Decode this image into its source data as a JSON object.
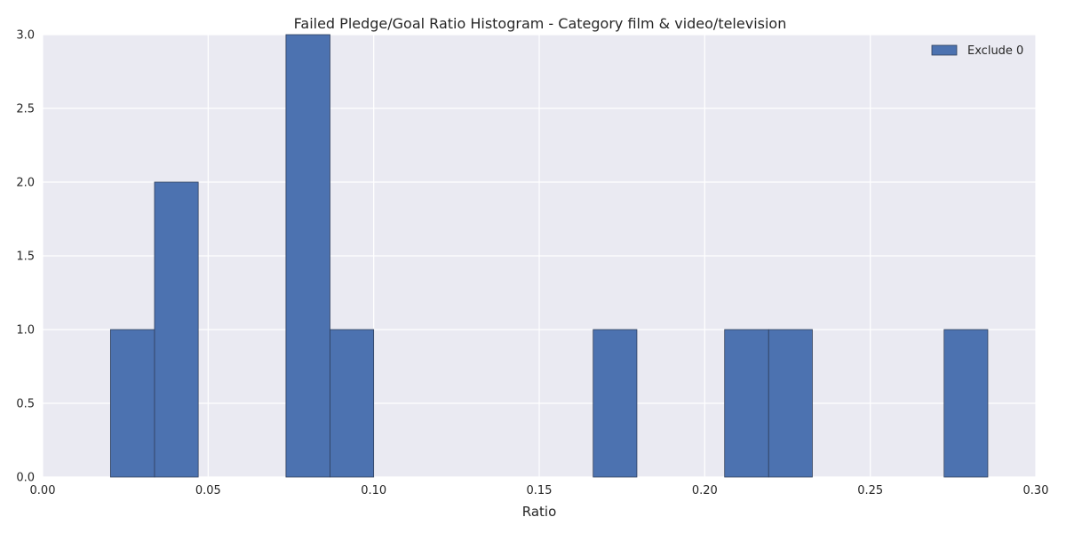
{
  "chart_data": {
    "type": "bar",
    "title": "Failed Pledge/Goal Ratio Histogram - Category film & video/television",
    "xlabel": "Ratio",
    "ylabel": "",
    "xlim": [
      0.0,
      0.3
    ],
    "ylim": [
      0.0,
      3.0
    ],
    "xticks": [
      "0.00",
      "0.05",
      "0.10",
      "0.15",
      "0.20",
      "0.25",
      "0.30"
    ],
    "yticks": [
      "0.0",
      "0.5",
      "1.0",
      "1.5",
      "2.0",
      "2.5",
      "3.0"
    ],
    "grid": true,
    "legend_position": "top-right",
    "series": [
      {
        "name": "Exclude 0",
        "color": "#4c72b0",
        "bins": [
          {
            "start": 0.0205,
            "end": 0.0338,
            "count": 1
          },
          {
            "start": 0.0338,
            "end": 0.047,
            "count": 2
          },
          {
            "start": 0.0735,
            "end": 0.0868,
            "count": 3
          },
          {
            "start": 0.0868,
            "end": 0.1,
            "count": 1
          },
          {
            "start": 0.1663,
            "end": 0.1795,
            "count": 1
          },
          {
            "start": 0.206,
            "end": 0.2193,
            "count": 1
          },
          {
            "start": 0.2193,
            "end": 0.2325,
            "count": 1
          },
          {
            "start": 0.2723,
            "end": 0.2855,
            "count": 1
          }
        ]
      }
    ]
  }
}
